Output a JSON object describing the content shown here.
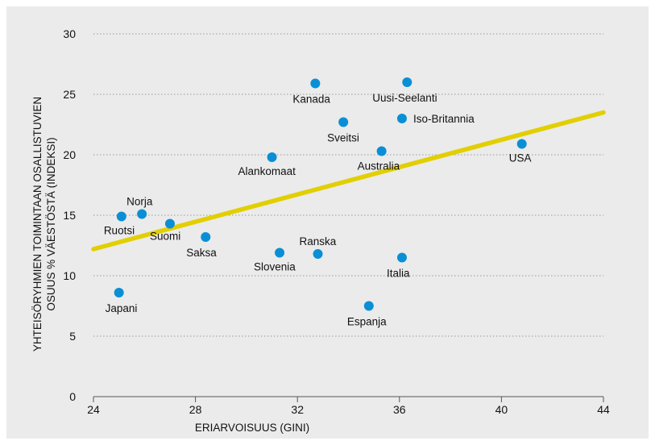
{
  "chart_data": {
    "type": "scatter",
    "title": "",
    "xlabel": "ERIARVOISUUS (GINI)",
    "ylabel_lines": [
      "YHTEISÖRYHMIEN TOIMINTAAN OSALLISTUVIEN",
      "OSUUS % VÄESTÖSTÄ (INDEKSI)"
    ],
    "xlim": [
      24,
      44
    ],
    "ylim": [
      0,
      30
    ],
    "xticks": [
      24,
      28,
      32,
      36,
      40,
      44
    ],
    "yticks": [
      0,
      5,
      10,
      15,
      20,
      25,
      30
    ],
    "grid": "horizontal dotted",
    "legend": "none",
    "points": [
      {
        "label": "Japani",
        "x": 25.0,
        "y": 8.6
      },
      {
        "label": "Ruotsi",
        "x": 25.1,
        "y": 14.9
      },
      {
        "label": "Norja",
        "x": 25.9,
        "y": 15.1
      },
      {
        "label": "Suomi",
        "x": 27.0,
        "y": 14.3
      },
      {
        "label": "Saksa",
        "x": 28.4,
        "y": 13.2
      },
      {
        "label": "Alankomaat",
        "x": 31.0,
        "y": 19.8
      },
      {
        "label": "Slovenia",
        "x": 31.3,
        "y": 11.9
      },
      {
        "label": "Kanada",
        "x": 32.7,
        "y": 25.9
      },
      {
        "label": "Ranska",
        "x": 32.8,
        "y": 11.8
      },
      {
        "label": "Sveitsi",
        "x": 33.8,
        "y": 22.7
      },
      {
        "label": "Espanja",
        "x": 34.8,
        "y": 7.5
      },
      {
        "label": "Australia",
        "x": 35.3,
        "y": 20.3
      },
      {
        "label": "Iso-Britannia",
        "x": 36.1,
        "y": 23.0
      },
      {
        "label": "Italia",
        "x": 36.1,
        "y": 11.5
      },
      {
        "label": "Uusi-Seelanti",
        "x": 36.3,
        "y": 26.0
      },
      {
        "label": "USA",
        "x": 40.8,
        "y": 20.9
      }
    ],
    "trendline": {
      "x": [
        24,
        44
      ],
      "y": [
        12.2,
        23.5
      ]
    },
    "colors": {
      "background": "#ebebeb",
      "point": "#0a8fd6",
      "trendline": "#e2cf00",
      "grid": "#9a9a9a",
      "axis": "#555555"
    }
  }
}
